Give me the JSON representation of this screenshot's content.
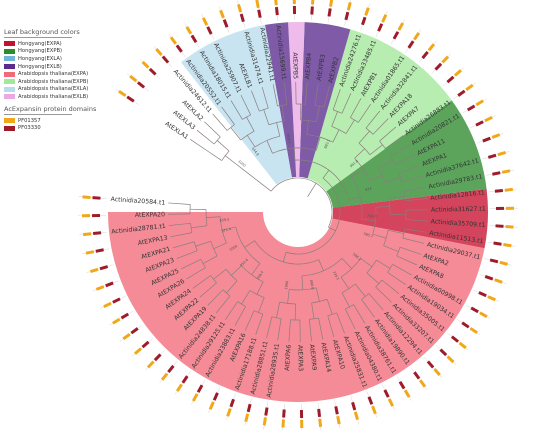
{
  "legend": {
    "colors_title": "Leaf background colors",
    "colors": [
      {
        "label": "Hongyang(EXPA)",
        "color": "#c8102e"
      },
      {
        "label": "Hongyang(EXPB)",
        "color": "#2e8b2e"
      },
      {
        "label": "Hongyang(EXLA)",
        "color": "#6fb6d9"
      },
      {
        "label": "Hongyang(EXLB)",
        "color": "#5b2c8e"
      },
      {
        "label": "Arabidopsis thaliana(EXPA)",
        "color": "#f26a7a"
      },
      {
        "label": "Arabidopsis thaliana(EXPB)",
        "color": "#a3e89a"
      },
      {
        "label": "Arabidopsis thaliana(EXLA)",
        "color": "#b9dcec"
      },
      {
        "label": "Arabidopsis thaliana(EXLB)",
        "color": "#e9a8e6"
      }
    ],
    "domains_title": "AcExpansin protein domains",
    "domains": [
      {
        "label": "PF01357",
        "color": "#f0a818"
      },
      {
        "label": "PF03330",
        "color": "#9e1b2a"
      }
    ]
  },
  "sectors": [
    {
      "start": 349,
      "end": 367,
      "color": "#c8102e",
      "group": "EXPA"
    },
    {
      "start": 367,
      "end": 396,
      "color": "#2e8b2e",
      "group": "EXPB"
    },
    {
      "start": 396,
      "end": 434,
      "color": "#a3e89a",
      "group": "EXPB"
    },
    {
      "start": 434,
      "end": 448,
      "color": "#5b2c8e",
      "group": "EXLB"
    },
    {
      "start": 448,
      "end": 453,
      "color": "#e9a8e6",
      "group": "EXLB"
    },
    {
      "start": 453,
      "end": 460,
      "color": "#5b2c8e",
      "group": "EXLB"
    },
    {
      "start": 460,
      "end": 488,
      "color": "#b9dcec",
      "group": "EXLA"
    },
    {
      "start": 180,
      "end": 349,
      "color": "#f26a7a",
      "group": "EXPA"
    }
  ],
  "leaves": [
    {
      "a": 176,
      "t": "Actinidia20584.t1"
    },
    {
      "a": 181,
      "t": "AtEXPA20"
    },
    {
      "a": 186,
      "t": "Actinidia28781.t1"
    },
    {
      "a": 191,
      "t": "AtEXPA13"
    },
    {
      "a": 196,
      "t": "AtEXPA21"
    },
    {
      "a": 201,
      "t": "AtEXPA23"
    },
    {
      "a": 206,
      "t": "AtEXPA25"
    },
    {
      "a": 211,
      "t": "AtEXPA26"
    },
    {
      "a": 216,
      "t": "AtEXPA24"
    },
    {
      "a": 221,
      "t": "AtEXPA22"
    },
    {
      "a": 226,
      "t": "AtEXPA19"
    },
    {
      "a": 231,
      "t": "Actinidia24838.t1"
    },
    {
      "a": 236,
      "t": "Actinidia29125.t1"
    },
    {
      "a": 241,
      "t": "Actinidia23883.t1"
    },
    {
      "a": 246,
      "t": "AtEXPA16"
    },
    {
      "a": 251,
      "t": "Actinidia17188.t1"
    },
    {
      "a": 256,
      "t": "Actinidia28851.t1"
    },
    {
      "a": 261,
      "t": "Actinidia28935.t1"
    },
    {
      "a": 266,
      "t": "AtEXPA6"
    },
    {
      "a": 271,
      "t": "AtEXPA3"
    },
    {
      "a": 276,
      "t": "AtEXPA9"
    },
    {
      "a": 281,
      "t": "AtEXPA14"
    },
    {
      "a": 286,
      "t": "AtEXPA10"
    },
    {
      "a": 291,
      "t": "Actinidia25831.t1"
    },
    {
      "a": 296,
      "t": "Actinidia04380.t1"
    },
    {
      "a": 301,
      "t": "Actinidia38761.t1"
    },
    {
      "a": 306,
      "t": "Actinidia19890.t1"
    },
    {
      "a": 311,
      "t": "Actinidia12294.t1"
    },
    {
      "a": 316,
      "t": "Actinidia33207.t1"
    },
    {
      "a": 321,
      "t": "Actinidia35005.t1"
    },
    {
      "a": 326,
      "t": "Actinidia19034.t1"
    },
    {
      "a": 331,
      "t": "Actinidia00998.t1"
    },
    {
      "a": 336,
      "t": "AtEXPA8"
    },
    {
      "a": 341,
      "t": "AtEXPA2"
    },
    {
      "a": 346,
      "t": "Actinidia29037.t1"
    },
    {
      "a": 351,
      "t": "Actinidia11513.t1"
    },
    {
      "a": 356,
      "t": "Actinidia35709.t1"
    },
    {
      "a": 361,
      "t": "Actinidia31627.t1"
    },
    {
      "a": 366,
      "t": "Actinidia12816.t1"
    },
    {
      "a": 371,
      "t": "Actinidia29783.t1"
    },
    {
      "a": 376,
      "t": "Actinidia37642.t1"
    },
    {
      "a": 381,
      "t": "AtEXPA1"
    },
    {
      "a": 386,
      "t": "AtEXPA11"
    },
    {
      "a": 391,
      "t": "Actinidia20821.t1"
    },
    {
      "a": 396,
      "t": "Actinidia26883.t1"
    },
    {
      "a": 401,
      "t": "AtEXPA7"
    },
    {
      "a": 406,
      "t": "AtEXPA18"
    },
    {
      "a": 411,
      "t": "Actinidia32841.t1"
    },
    {
      "a": 416,
      "t": "Actinidia01865.t1"
    },
    {
      "a": 421,
      "t": "AtEXPB1"
    },
    {
      "a": 426,
      "t": "Actinidia33485.t1"
    },
    {
      "a": 431,
      "t": "Actinidia24276.t1"
    },
    {
      "a": 436,
      "t": "AtEXPB2"
    },
    {
      "a": 441,
      "t": "AtEXPB3"
    },
    {
      "a": 446,
      "t": "AtEXPB4"
    },
    {
      "a": 451,
      "t": "AtEXPB5"
    },
    {
      "a": 456,
      "t": "Actinidia15699.t1"
    },
    {
      "a": 461,
      "t": "Actinidia22941.t1"
    },
    {
      "a": 466,
      "t": "Actinidia31474.t1"
    },
    {
      "a": 471,
      "t": "AtEXLB1"
    },
    {
      "a": 476,
      "t": "Actinidia25907.t1"
    },
    {
      "a": 481,
      "t": "Actinidia18015.t1"
    },
    {
      "a": 486,
      "t": "Actinidia20552.t1"
    },
    {
      "a": 491,
      "t": "Actinidia24612.t1"
    },
    {
      "a": 496,
      "t": "AtEXLA2"
    },
    {
      "a": 501,
      "t": "AtEXLA3"
    },
    {
      "a": 506,
      "t": "AtEXLA1"
    }
  ],
  "bootstraps": [
    {
      "a": 187,
      "t": "659.5"
    },
    {
      "a": 195,
      "t": "571.4"
    },
    {
      "a": 210,
      "t": "1000"
    },
    {
      "a": 224,
      "t": "952.6"
    },
    {
      "a": 240,
      "t": "758.4"
    },
    {
      "a": 262,
      "t": "1000"
    },
    {
      "a": 280,
      "t": "896.6"
    },
    {
      "a": 300,
      "t": "735.2"
    },
    {
      "a": 322,
      "t": "588.2"
    },
    {
      "a": 341,
      "t": "585.7"
    },
    {
      "a": 356,
      "t": "744.3"
    },
    {
      "a": 377,
      "t": "974"
    },
    {
      "a": 400,
      "t": "961.8"
    },
    {
      "a": 426,
      "t": "883.5"
    },
    {
      "a": 458,
      "t": "809.5"
    },
    {
      "a": 486,
      "t": "644.8"
    },
    {
      "a": 500,
      "t": "1000"
    }
  ]
}
